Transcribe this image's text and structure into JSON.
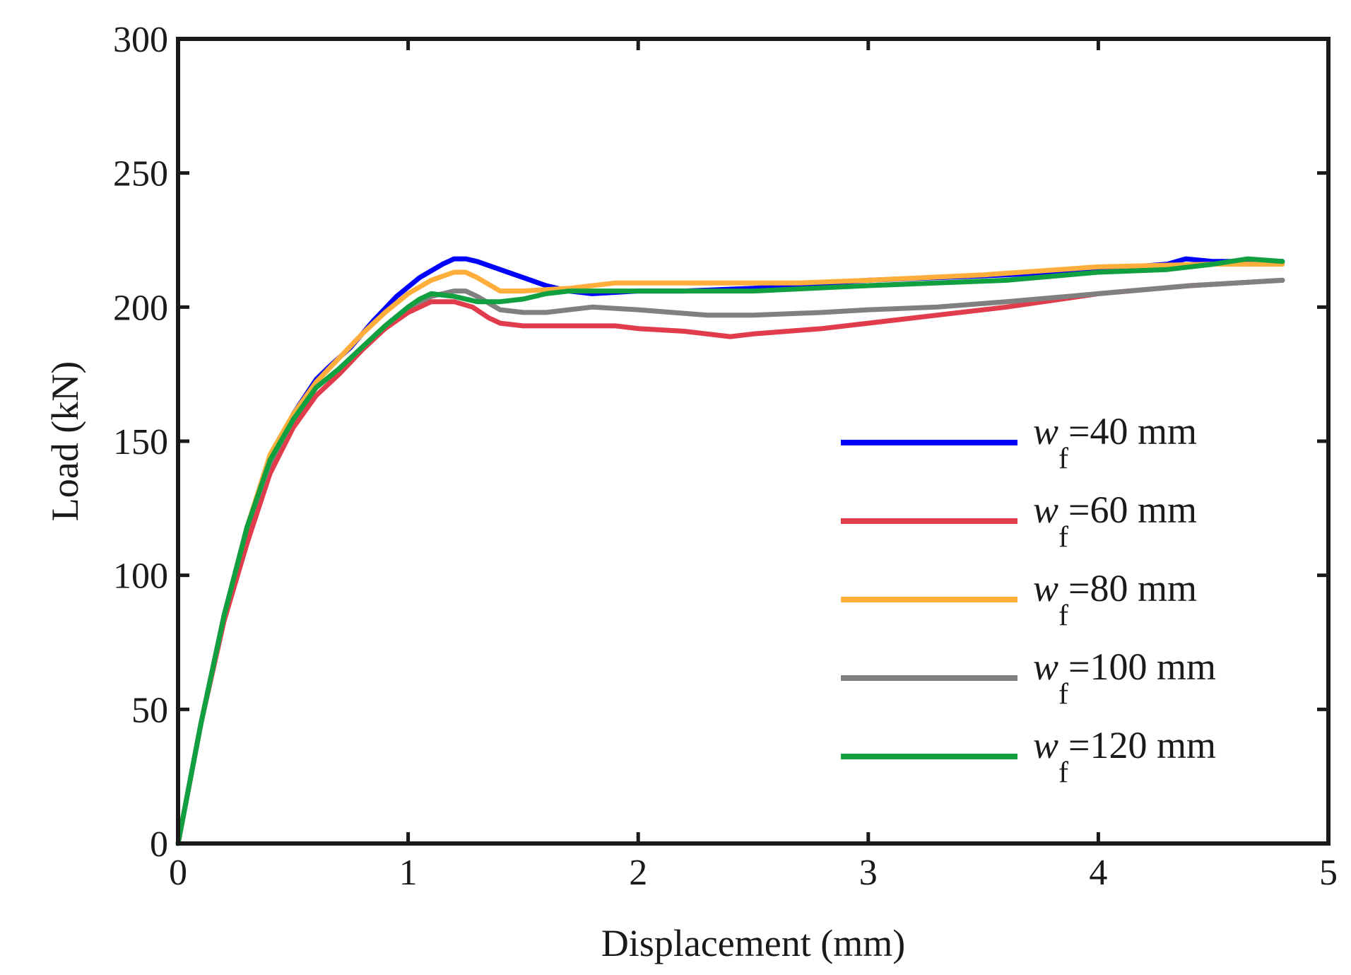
{
  "chart_data": {
    "type": "line",
    "title": "",
    "xlabel": "Displacement (mm)",
    "ylabel": "Load (kN)",
    "xlim": [
      0,
      5
    ],
    "ylim": [
      0,
      300
    ],
    "xticks": [
      0,
      1,
      2,
      3,
      4,
      5
    ],
    "yticks": [
      0,
      50,
      100,
      150,
      200,
      250,
      300
    ],
    "grid": false,
    "legend_position": "right",
    "series": [
      {
        "name": "w_f=40 mm",
        "label_var": "w",
        "label_sub": "f",
        "label_rest": "=40 mm",
        "color": "#0000ff",
        "x": [
          0,
          0.1,
          0.2,
          0.3,
          0.4,
          0.5,
          0.6,
          0.66,
          0.75,
          0.85,
          0.95,
          1.05,
          1.15,
          1.2,
          1.25,
          1.3,
          1.4,
          1.5,
          1.6,
          1.7,
          1.8,
          2.0,
          2.2,
          2.5,
          3.0,
          3.3,
          3.6,
          4.0,
          4.3,
          4.38,
          4.5,
          4.8
        ],
        "y": [
          0,
          45,
          85,
          118,
          142,
          160,
          173,
          178,
          185,
          195,
          204,
          211,
          216,
          218,
          218,
          217,
          214,
          211,
          208,
          206,
          205,
          206,
          206,
          207,
          210,
          211,
          212,
          214,
          216,
          218,
          217,
          217
        ]
      },
      {
        "name": "w_f=60 mm",
        "label_var": "w",
        "label_sub": "f",
        "label_rest": "=60 mm",
        "color": "#e03c4c",
        "x": [
          0,
          0.1,
          0.2,
          0.3,
          0.4,
          0.5,
          0.6,
          0.7,
          0.8,
          0.9,
          1.0,
          1.1,
          1.2,
          1.28,
          1.35,
          1.4,
          1.5,
          1.7,
          1.9,
          2.0,
          2.2,
          2.3,
          2.4,
          2.5,
          2.8,
          3.0,
          3.3,
          3.6,
          4.0,
          4.4,
          4.8
        ],
        "y": [
          0,
          45,
          83,
          112,
          138,
          155,
          167,
          175,
          184,
          192,
          198,
          202,
          202,
          200,
          196,
          194,
          193,
          193,
          193,
          192,
          191,
          190,
          189,
          190,
          192,
          194,
          197,
          200,
          205,
          208,
          210
        ]
      },
      {
        "name": "w_f=80 mm",
        "label_var": "w",
        "label_sub": "f",
        "label_rest": "=80 mm",
        "color": "#ffae3c",
        "x": [
          0,
          0.1,
          0.2,
          0.3,
          0.4,
          0.5,
          0.6,
          0.7,
          0.8,
          0.9,
          1.0,
          1.1,
          1.2,
          1.25,
          1.3,
          1.4,
          1.5,
          1.7,
          1.9,
          2.0,
          2.3,
          2.7,
          3.0,
          3.5,
          4.0,
          4.5,
          4.8
        ],
        "y": [
          0,
          45,
          85,
          118,
          145,
          160,
          172,
          181,
          190,
          198,
          205,
          210,
          213,
          213,
          211,
          206,
          206,
          207,
          209,
          209,
          209,
          209,
          210,
          212,
          215,
          216,
          216
        ]
      },
      {
        "name": "w_f=100 mm",
        "label_var": "w",
        "label_sub": "f",
        "label_rest": "=100 mm",
        "color": "#808080",
        "x": [
          0,
          0.1,
          0.2,
          0.3,
          0.4,
          0.5,
          0.6,
          0.7,
          0.8,
          0.9,
          1.0,
          1.1,
          1.2,
          1.25,
          1.3,
          1.4,
          1.5,
          1.6,
          1.8,
          2.0,
          2.3,
          2.5,
          2.8,
          3.0,
          3.3,
          3.6,
          4.0,
          4.4,
          4.8
        ],
        "y": [
          0,
          45,
          85,
          118,
          142,
          158,
          170,
          177,
          185,
          193,
          200,
          204,
          206,
          206,
          204,
          199,
          198,
          198,
          200,
          199,
          197,
          197,
          198,
          199,
          200,
          202,
          205,
          208,
          210
        ]
      },
      {
        "name": "w_f=120 mm",
        "label_var": "w",
        "label_sub": "f",
        "label_rest": "=120 mm",
        "color": "#10a040",
        "x": [
          0,
          0.1,
          0.2,
          0.3,
          0.4,
          0.5,
          0.6,
          0.7,
          0.8,
          0.9,
          1.0,
          1.05,
          1.1,
          1.2,
          1.3,
          1.4,
          1.5,
          1.6,
          1.7,
          2.0,
          2.5,
          3.0,
          3.6,
          4.0,
          4.3,
          4.5,
          4.65,
          4.8
        ],
        "y": [
          0,
          45,
          85,
          118,
          143,
          158,
          170,
          177,
          185,
          193,
          200,
          203,
          205,
          204,
          202,
          202,
          203,
          205,
          206,
          206,
          206,
          208,
          210,
          213,
          214,
          216,
          218,
          217
        ]
      }
    ]
  }
}
